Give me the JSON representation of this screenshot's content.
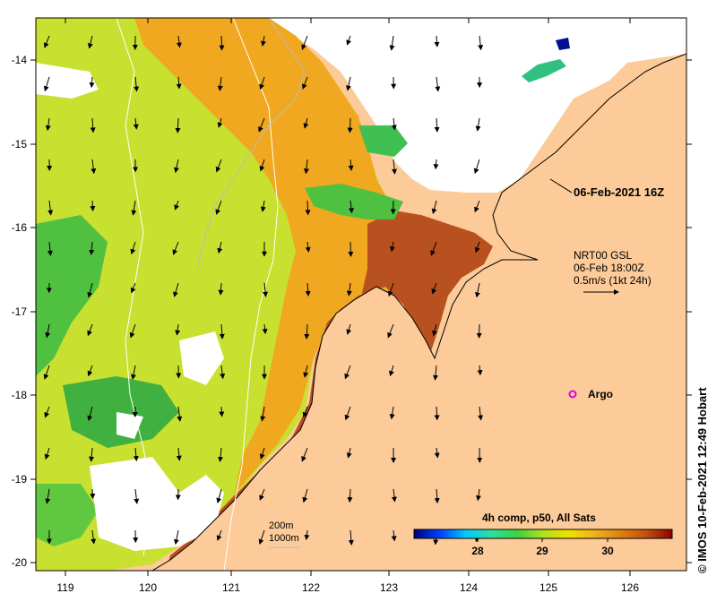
{
  "map": {
    "x_ticks": [
      "119",
      "120",
      "121",
      "122",
      "123",
      "124",
      "125",
      "126"
    ],
    "y_ticks": [
      "-14",
      "-15",
      "-16",
      "-17",
      "-18",
      "-19",
      "-20"
    ]
  },
  "annotations": {
    "datetime": "06-Feb-2021 16Z",
    "current_product": "NRT00 GSL",
    "current_time": "06-Feb 18:00Z",
    "current_scale": "0.5m/s (1kt 24h)",
    "argo_label": "Argo",
    "contour_200": "200m",
    "contour_1000": "1000m"
  },
  "colorbar": {
    "title": "4h comp, p50, All Sats",
    "ticks": [
      "28",
      "29",
      "30"
    ],
    "colors": [
      "#00007f",
      "#0040ff",
      "#00c8ff",
      "#30e0a0",
      "#40d040",
      "#b0e020",
      "#f0e000",
      "#f0b020",
      "#e08010",
      "#c05010",
      "#900000"
    ]
  },
  "credit": "© IMOS 10-Feb-2021 12:49 Hobart",
  "colors": {
    "land": "#fccb99",
    "no_data": "#ffffff",
    "coast": "#000000"
  }
}
